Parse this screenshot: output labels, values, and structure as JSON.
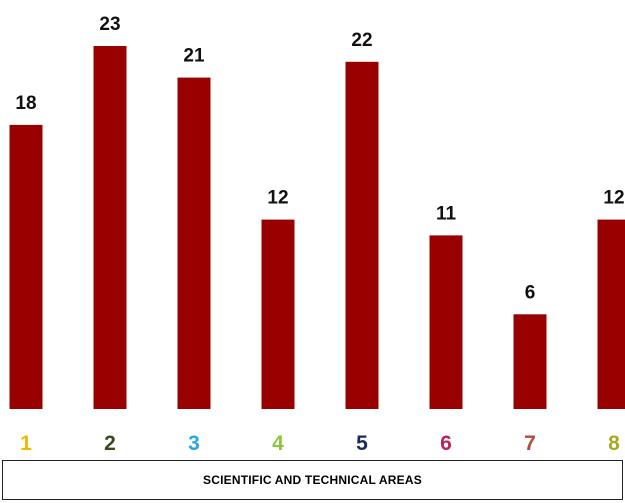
{
  "chart_data": {
    "type": "bar",
    "categories": [
      "1",
      "2",
      "3",
      "4",
      "5",
      "6",
      "7",
      "8"
    ],
    "values": [
      18,
      23,
      21,
      12,
      22,
      11,
      6,
      12
    ],
    "category_colors": [
      "#f2b800",
      "#3a4a1a",
      "#29a8e0",
      "#8cc63f",
      "#1a2a5e",
      "#b8245c",
      "#b24a3f",
      "#a8a824"
    ],
    "bar_color": "#990000",
    "title": "",
    "xlabel": "SCIENTIFIC AND TECHNICAL AREAS",
    "ylabel": "",
    "ylim": [
      0,
      23
    ],
    "grid": false,
    "legend": "none"
  }
}
